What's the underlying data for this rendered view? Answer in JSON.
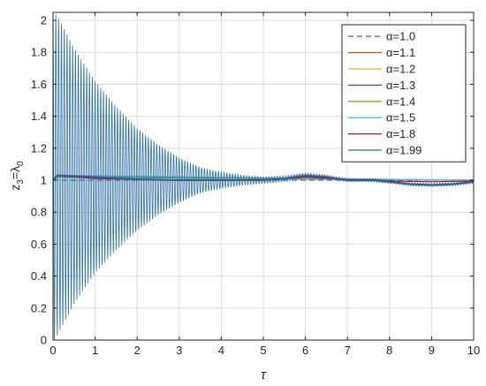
{
  "chart_data": {
    "type": "line",
    "title": "",
    "xlabel": "τ",
    "ylabel_parts": {
      "main": "z",
      "sub1": "3",
      "mid": "=λ",
      "sub2": "0"
    },
    "xlim": [
      0,
      10
    ],
    "ylim": [
      0,
      2.05
    ],
    "grid": true,
    "legend_position": "top-right",
    "x_ticks": [
      0,
      1,
      2,
      3,
      4,
      5,
      6,
      7,
      8,
      9,
      10
    ],
    "y_ticks": [
      0,
      0.2,
      0.4,
      0.6,
      0.8,
      1,
      1.2,
      1.4,
      1.6,
      1.8,
      2
    ],
    "x_tick_labels": [
      "0",
      "1",
      "2",
      "3",
      "4",
      "5",
      "6",
      "7",
      "8",
      "9",
      "10"
    ],
    "y_tick_labels": [
      "0",
      "0.2",
      "0.4",
      "0.6",
      "0.8",
      "1",
      "1.2",
      "1.4",
      "1.6",
      "1.8",
      "2"
    ],
    "series": [
      {
        "name": "α=1.0",
        "color": "#4a78b0",
        "dashed": true,
        "kind": "flat",
        "x": [
          0,
          10
        ],
        "y": [
          1,
          1
        ]
      },
      {
        "name": "α=1.1",
        "color": "#d95319",
        "dashed": false,
        "kind": "flat",
        "x": [
          0,
          0.1,
          10
        ],
        "y": [
          1,
          1.02,
          1
        ]
      },
      {
        "name": "α=1.2",
        "color": "#edb120",
        "dashed": false,
        "kind": "flat",
        "x": [
          0,
          0.1,
          10
        ],
        "y": [
          1,
          1.02,
          1
        ]
      },
      {
        "name": "α=1.3",
        "color": "#7e2f8e",
        "dashed": false,
        "kind": "flat",
        "x": [
          0,
          0.1,
          10
        ],
        "y": [
          1,
          1.02,
          1
        ]
      },
      {
        "name": "α=1.4",
        "color": "#77ac30",
        "dashed": false,
        "kind": "flat",
        "x": [
          0,
          0.1,
          10
        ],
        "y": [
          1,
          1.02,
          1
        ]
      },
      {
        "name": "α=1.5",
        "color": "#4dbeee",
        "dashed": false,
        "kind": "flat",
        "x": [
          0,
          0.1,
          10
        ],
        "y": [
          1,
          1.03,
          1
        ]
      },
      {
        "name": "α=1.8",
        "color": "#a2142f",
        "dashed": false,
        "kind": "wave",
        "x": [
          0,
          0.1,
          1,
          2,
          3,
          4,
          5,
          6,
          7,
          7.6,
          8,
          9,
          10
        ],
        "y": [
          1,
          1.03,
          1.01,
          1.005,
          1.0,
          1.0,
          1.0,
          1.02,
          1.005,
          1.0,
          0.995,
          0.99,
          0.995
        ]
      },
      {
        "name": "α=1.99",
        "color": "#2f72a8",
        "dashed": false,
        "kind": "oscillating",
        "envelope_x": [
          0,
          0.5,
          1,
          1.5,
          2,
          2.5,
          3,
          3.5,
          4,
          4.5,
          5,
          6,
          7,
          8,
          9,
          10
        ],
        "envelope_amp": [
          1.05,
          0.8,
          0.6,
          0.45,
          0.32,
          0.22,
          0.14,
          0.08,
          0.05,
          0.03,
          0.02,
          0.015,
          0.01,
          0.01,
          0.01,
          0.01
        ],
        "trend_x": [
          0,
          0.1,
          1,
          2,
          3,
          4,
          5,
          5.5,
          6,
          6.5,
          7,
          7.6,
          8,
          8.5,
          9,
          9.5,
          10
        ],
        "trend_y": [
          1,
          1.03,
          1.02,
          1.005,
          1.0,
          1.0,
          1.0,
          1.01,
          1.03,
          1.02,
          1.0,
          1.0,
          0.99,
          0.975,
          0.97,
          0.975,
          0.99
        ]
      }
    ]
  }
}
